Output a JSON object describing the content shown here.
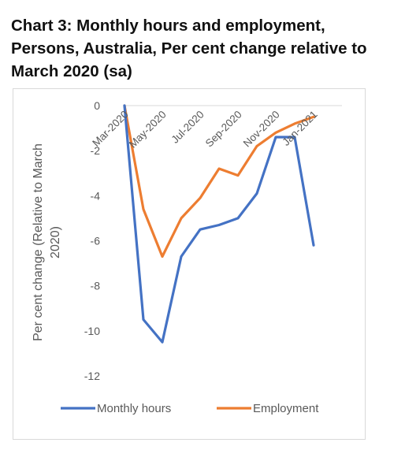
{
  "title": "Chart 3: Monthly hours and employment, Persons, Australia, Per cent change relative to March 2020 (sa)",
  "chart_data": {
    "type": "line",
    "title": "Chart 3: Monthly hours and employment, Persons, Australia, Per cent change relative to March 2020 (sa)",
    "ylabel": "Per cent change (Relative to March 2020)",
    "xlabel": "",
    "ylim": [
      -12,
      0
    ],
    "yticks": [
      0,
      -2,
      -4,
      -6,
      -8,
      -10,
      -12
    ],
    "x": [
      "Mar-2020",
      "Apr-2020",
      "May-2020",
      "Jun-2020",
      "Jul-2020",
      "Aug-2020",
      "Sep-2020",
      "Oct-2020",
      "Nov-2020",
      "Dec-2020",
      "Jan-2021",
      "Feb-2021"
    ],
    "x_tick_labels": [
      "Mar-2020",
      "May-2020",
      "Jul-2020",
      "Sep-2020",
      "Nov-2020",
      "Jan-2021"
    ],
    "grid": false,
    "legend": "bottom",
    "series": [
      {
        "name": "Monthly hours",
        "color": "#4472c4",
        "values": [
          0,
          -9.5,
          -10.5,
          -6.7,
          -5.5,
          -5.3,
          -5.0,
          -3.9,
          -1.4,
          -1.4,
          -6.2,
          null
        ]
      },
      {
        "name": "Employment",
        "color": "#ed7d31",
        "values": [
          0,
          -4.6,
          -6.7,
          -5.0,
          -4.1,
          -2.8,
          -3.1,
          -1.8,
          -1.2,
          -0.8,
          -0.5,
          null
        ]
      }
    ]
  }
}
